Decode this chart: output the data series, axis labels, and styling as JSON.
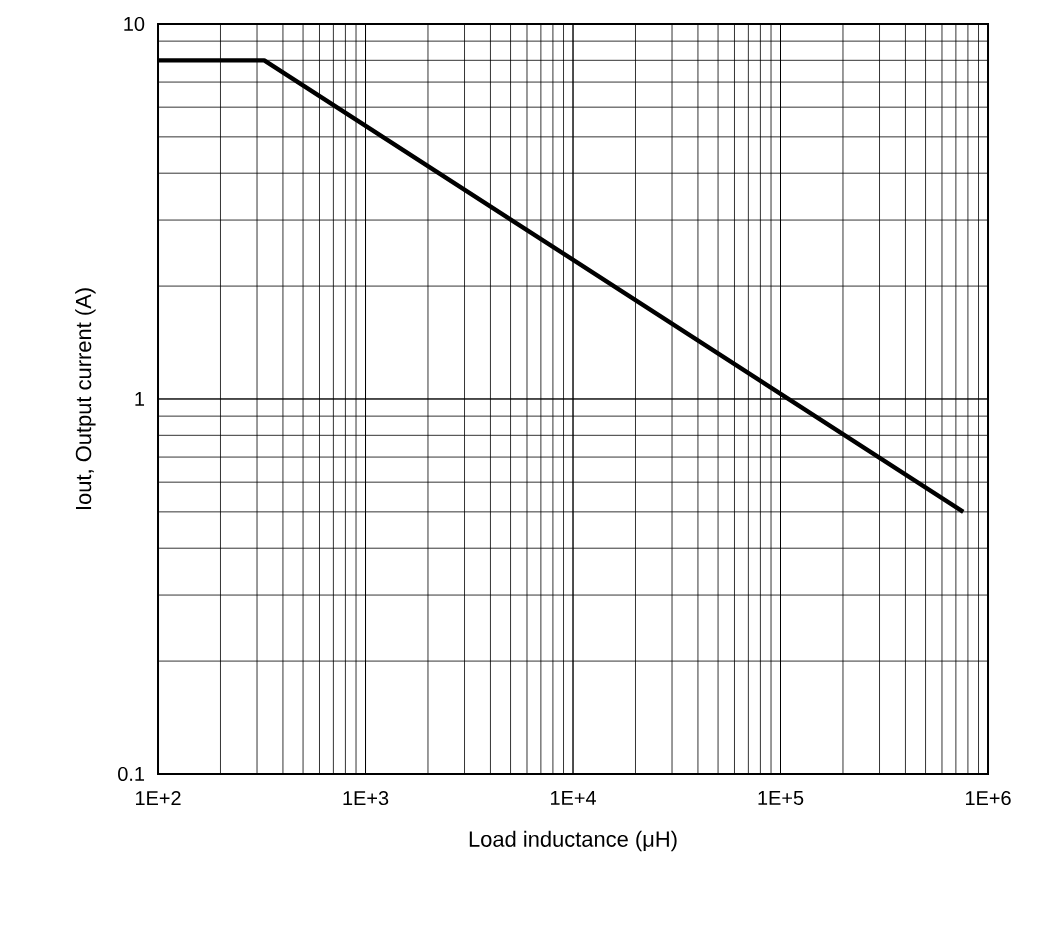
{
  "chart_data": {
    "type": "line",
    "xlabel": "Load inductance (μH)",
    "ylabel": "Iout, Output current (A)",
    "x": [
      100,
      325,
      760000
    ],
    "series": [
      {
        "color": "#000000",
        "values": [
          8,
          8,
          0.5
        ]
      }
    ],
    "log": "xy",
    "grid": true,
    "marker": "none",
    "line_style": "solid",
    "xlim": [
      100,
      1000000
    ],
    "ylim": [
      0.1,
      10
    ],
    "xticks": [
      {
        "value": 100,
        "label": "1E+2"
      },
      {
        "value": 1000,
        "label": "1E+3"
      },
      {
        "value": 10000,
        "label": "1E+4"
      },
      {
        "value": 100000,
        "label": "1E+5"
      },
      {
        "value": 1000000,
        "label": "1E+6"
      }
    ],
    "yticks": [
      0.1,
      1,
      10
    ]
  }
}
